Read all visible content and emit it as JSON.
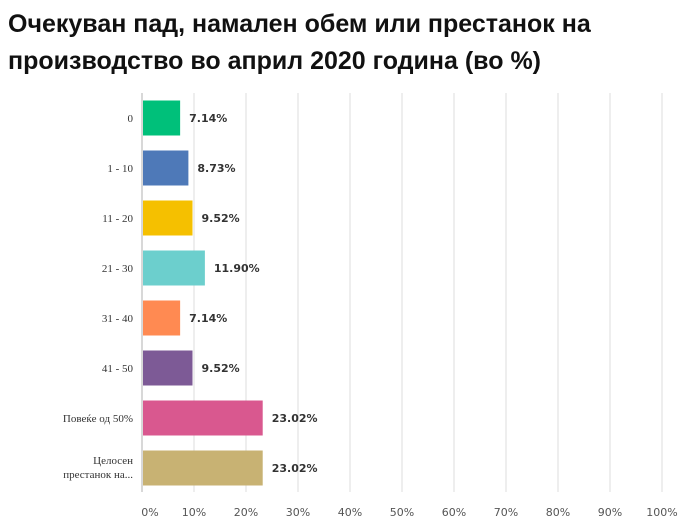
{
  "chart_data": {
    "type": "bar",
    "orientation": "horizontal",
    "title": "Очекуван пад, намален обем или престанок на производство во април 2020 година (во %)",
    "categories": [
      "0",
      "1 - 10",
      "11 - 20",
      "21 - 30",
      "31 - 40",
      "41 - 50",
      "Повеќе од 50%",
      [
        "Целосен",
        "престанок на..."
      ]
    ],
    "values": [
      7.14,
      8.73,
      9.52,
      11.9,
      7.14,
      9.52,
      23.02,
      23.02
    ],
    "value_labels": [
      "7.14%",
      "8.73%",
      "9.52%",
      "11.90%",
      "7.14%",
      "9.52%",
      "23.02%",
      "23.02%"
    ],
    "colors": [
      "#00c07a",
      "#4e79b8",
      "#f5c000",
      "#6ccfcd",
      "#ff8a52",
      "#7d5a96",
      "#d9588f",
      "#c8b273"
    ],
    "xlim": [
      0,
      100
    ],
    "xticks": [
      "0%",
      "10%",
      "20%",
      "30%",
      "40%",
      "50%",
      "60%",
      "70%",
      "80%",
      "90%",
      "100%"
    ],
    "grid": true,
    "xlabel": "",
    "ylabel": ""
  }
}
